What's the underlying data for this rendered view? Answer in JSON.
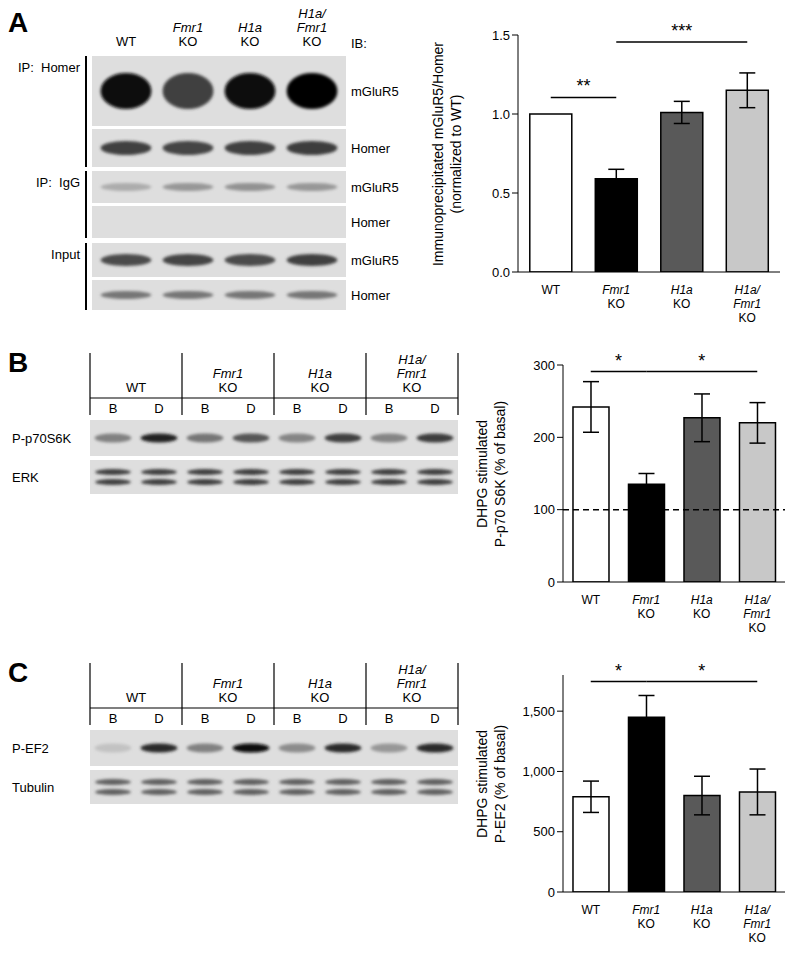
{
  "chart_data": [
    {
      "type": "bar",
      "y_label": [
        "Immunoprecipitated mGluR5/Homer",
        "(normalized to WT)"
      ],
      "categories": [
        "WT",
        "Fmr1 KO",
        "H1a KO",
        "H1a/Fmr1 KO"
      ],
      "values": [
        1.0,
        0.59,
        1.01,
        1.15
      ],
      "errors": [
        0,
        0.06,
        0.07,
        0.11
      ],
      "colors": [
        "#ffffff",
        "#000000",
        "#595959",
        "#c8c8c8"
      ],
      "ylim": [
        0,
        1.5
      ],
      "yticks": [
        {
          "value": 0,
          "label": "0.0"
        },
        {
          "value": 0.5,
          "label": "0.5"
        },
        {
          "value": 1,
          "label": "1.0"
        },
        {
          "value": 1.5,
          "label": "1.5"
        }
      ],
      "significance": [
        {
          "between": [
            "WT",
            "Fmr1 KO"
          ],
          "label": "**"
        },
        {
          "between": [
            "Fmr1 KO",
            "H1a/Fmr1 KO"
          ],
          "label": "***"
        }
      ]
    },
    {
      "type": "bar",
      "y_label": [
        "DHPG stimulated",
        "P-p70 S6K (% of basal)"
      ],
      "categories": [
        "WT",
        "Fmr1 KO",
        "H1a KO",
        "H1a/Fmr1 KO"
      ],
      "values": [
        242,
        135,
        227,
        220
      ],
      "errors": [
        35,
        15,
        33,
        28
      ],
      "colors": [
        "#ffffff",
        "#000000",
        "#595959",
        "#c8c8c8"
      ],
      "ylim": [
        0,
        300
      ],
      "yticks": [
        0,
        100,
        200,
        300
      ],
      "reference_line": 100,
      "significance": [
        {
          "between": [
            "WT",
            "Fmr1 KO"
          ],
          "label": "*"
        },
        {
          "between": [
            "Fmr1 KO",
            "H1a/Fmr1 KO"
          ],
          "label": "*"
        }
      ]
    },
    {
      "type": "bar",
      "y_label": [
        "DHPG stimulated",
        "P-EF2 (% of basal)"
      ],
      "categories": [
        "WT",
        "Fmr1 KO",
        "H1a KO",
        "H1a/Fmr1 KO"
      ],
      "values": [
        790,
        1450,
        800,
        830
      ],
      "errors": [
        130,
        180,
        160,
        190
      ],
      "colors": [
        "#ffffff",
        "#000000",
        "#595959",
        "#c8c8c8"
      ],
      "ylim": [
        0,
        1800
      ],
      "yticks": [
        0,
        500,
        {
          "value": 1000,
          "label": "1,000"
        },
        {
          "value": 1500,
          "label": "1,500"
        }
      ],
      "significance": [
        {
          "between": [
            "WT",
            "Fmr1 KO"
          ],
          "label": "*"
        },
        {
          "between": [
            "Fmr1 KO",
            "H1a/Fmr1 KO"
          ],
          "label": "*"
        }
      ]
    }
  ],
  "blots": [
    {
      "panel": "A",
      "lanes": [
        "WT",
        "Fmr1 KO",
        "H1a KO",
        "H1a/Fmr1 KO"
      ],
      "ib_label": "IB:",
      "groups": [
        {
          "label": "IP:  Homer",
          "rows": [
            "mGluR5",
            "Homer"
          ]
        },
        {
          "label": "IP:  IgG",
          "rows": [
            "mGluR5",
            "Homer"
          ]
        },
        {
          "label": "Input",
          "rows": [
            "mGluR5",
            "Homer"
          ]
        }
      ]
    },
    {
      "panel": "B",
      "lanes": [
        "WT",
        "Fmr1 KO",
        "H1a KO",
        "H1a/Fmr1 KO"
      ],
      "sublanes": [
        "B",
        "D"
      ],
      "rows": [
        "P-p70S6K",
        "ERK"
      ]
    },
    {
      "panel": "C",
      "lanes": [
        "WT",
        "Fmr1 KO",
        "H1a KO",
        "H1a/Fmr1 KO"
      ],
      "sublanes": [
        "B",
        "D"
      ],
      "rows": [
        "P-EF2",
        "Tubulin"
      ]
    }
  ]
}
